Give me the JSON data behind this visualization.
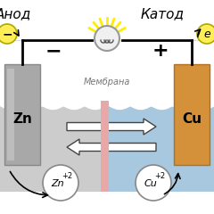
{
  "title_left": "Анод",
  "title_right": "Катод",
  "label_minus": "−",
  "label_plus": "+",
  "label_membrane": "Мембрана",
  "label_zn": "Zn",
  "label_cu": "Cu",
  "label_zn_ion": "Zn",
  "label_zn_ion_super": "+2",
  "label_cu_ion": "Cu",
  "label_cu_ion_super": "+2",
  "label_electron_left": "−",
  "label_electron_right": "e",
  "bg_color": "#ffffff",
  "left_solution_color": "#cccccc",
  "right_solution_color": "#a8c8e0",
  "zn_electrode_color": "#a8a8a8",
  "cu_electrode_color": "#d4913a",
  "membrane_color": "#e8a8a8",
  "wire_color": "#000000",
  "bulb_ray_color": "#ffee00",
  "electron_circle_color": "#ffee55",
  "ion_circle_bg": "#e0e0e0"
}
